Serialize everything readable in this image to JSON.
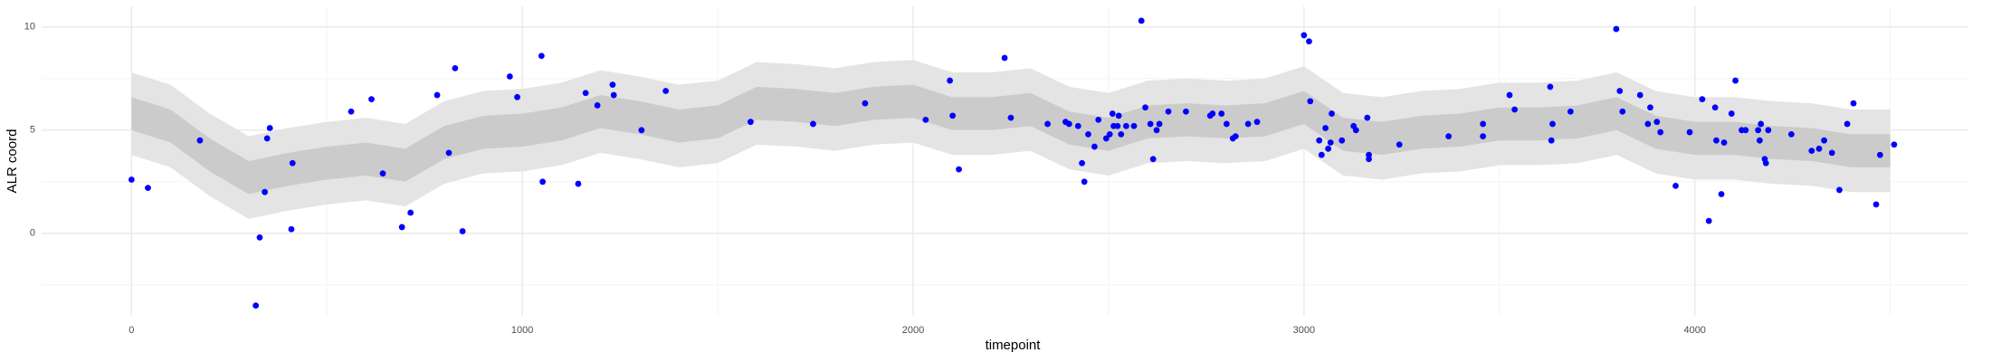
{
  "chart_data": {
    "type": "scatter",
    "x_label": "timepoint",
    "y_label": "ALR coord",
    "xlim": [
      -230,
      4700
    ],
    "ylim": [
      -4,
      11
    ],
    "xticks": [
      0,
      1000,
      2000,
      3000,
      4000
    ],
    "yticks": [
      0,
      5,
      10
    ],
    "minor_xticks": [
      500,
      1500,
      2500,
      3500,
      4500
    ],
    "minor_yticks": [
      -2.5,
      2.5,
      7.5
    ],
    "grid": true,
    "color": "#0000ff",
    "ribbon_x": [
      0,
      100,
      200,
      300,
      400,
      500,
      600,
      700,
      800,
      900,
      1000,
      1100,
      1200,
      1300,
      1400,
      1500,
      1600,
      1700,
      1800,
      1900,
      2000,
      2100,
      2200,
      2300,
      2400,
      2500,
      2600,
      2700,
      2800,
      2900,
      3000,
      3100,
      3200,
      3300,
      3400,
      3500,
      3600,
      3700,
      3800,
      3900,
      4000,
      4100,
      4200,
      4300,
      4400,
      4500
    ],
    "ribbons": [
      {
        "color": "#e4e4e4",
        "lower": [
          3.8,
          3.2,
          1.8,
          0.7,
          1.1,
          1.4,
          1.6,
          1.3,
          2.4,
          2.9,
          3.0,
          3.3,
          3.9,
          3.6,
          3.2,
          3.4,
          4.3,
          4.2,
          4.0,
          4.3,
          4.4,
          3.8,
          3.8,
          4.0,
          3.1,
          2.8,
          3.4,
          3.5,
          3.4,
          3.5,
          4.1,
          2.8,
          2.6,
          2.9,
          3.0,
          3.3,
          3.3,
          3.4,
          3.8,
          2.9,
          2.6,
          2.6,
          2.4,
          2.3,
          2.0,
          2.0
        ],
        "upper": [
          7.8,
          7.2,
          5.8,
          4.7,
          5.1,
          5.4,
          5.6,
          5.3,
          6.4,
          6.9,
          7.0,
          7.3,
          7.9,
          7.6,
          7.2,
          7.4,
          8.3,
          8.2,
          8.0,
          8.3,
          8.4,
          7.8,
          7.8,
          8.0,
          7.1,
          6.8,
          7.4,
          7.5,
          7.4,
          7.5,
          8.1,
          6.8,
          6.6,
          6.9,
          7.0,
          7.3,
          7.3,
          7.4,
          7.8,
          6.9,
          6.6,
          6.6,
          6.4,
          6.3,
          6.0,
          6.0
        ]
      },
      {
        "color": "#cbcbcb",
        "lower": [
          5.0,
          4.4,
          3.0,
          1.9,
          2.3,
          2.6,
          2.8,
          2.5,
          3.6,
          4.1,
          4.2,
          4.5,
          5.1,
          4.8,
          4.4,
          4.6,
          5.5,
          5.4,
          5.2,
          5.5,
          5.6,
          5.0,
          5.0,
          5.2,
          4.3,
          4.0,
          4.6,
          4.7,
          4.6,
          4.7,
          5.3,
          4.0,
          3.8,
          4.1,
          4.2,
          4.5,
          4.5,
          4.6,
          5.0,
          4.1,
          3.8,
          3.8,
          3.6,
          3.5,
          3.2,
          3.2
        ],
        "upper": [
          6.6,
          6.0,
          4.6,
          3.5,
          3.9,
          4.2,
          4.4,
          4.1,
          5.2,
          5.7,
          5.8,
          6.1,
          6.7,
          6.4,
          6.0,
          6.2,
          7.1,
          7.0,
          6.8,
          7.1,
          7.2,
          6.6,
          6.6,
          6.8,
          5.9,
          5.6,
          6.2,
          6.3,
          6.2,
          6.3,
          6.9,
          5.6,
          5.4,
          5.7,
          5.8,
          6.1,
          6.1,
          6.2,
          6.6,
          5.7,
          5.4,
          5.4,
          5.2,
          5.1,
          4.8,
          4.8
        ]
      }
    ],
    "x": [
      0,
      42,
      175,
      318,
      328,
      341,
      347,
      354,
      409,
      412,
      562,
      614,
      643,
      692,
      714,
      782,
      812,
      828,
      847,
      968,
      987,
      1049,
      1052,
      1143,
      1162,
      1192,
      1231,
      1234,
      1305,
      1367,
      1584,
      1744,
      1877,
      2032,
      2094,
      2101,
      2117,
      2234,
      2250,
      2344,
      2390,
      2399,
      2422,
      2432,
      2438,
      2448,
      2464,
      2474,
      2494,
      2503,
      2510,
      2513,
      2523,
      2526,
      2532,
      2545,
      2565,
      2584,
      2594,
      2607,
      2614,
      2623,
      2630,
      2653,
      2698,
      2760,
      2766,
      2789,
      2802,
      2818,
      2825,
      2857,
      2880,
      3000,
      3013,
      3016,
      3039,
      3045,
      3055,
      3062,
      3068,
      3071,
      3097,
      3127,
      3133,
      3162,
      3166,
      3166,
      3244,
      3370,
      3458,
      3458,
      3526,
      3539,
      3630,
      3633,
      3636,
      3682,
      3799,
      3808,
      3815,
      3860,
      3880,
      3886,
      3903,
      3912,
      3951,
      3987,
      4019,
      4036,
      4052,
      4055,
      4068,
      4075,
      4094,
      4104,
      4120,
      4130,
      4162,
      4166,
      4169,
      4179,
      4182,
      4188,
      4247,
      4299,
      4318,
      4331,
      4351,
      4370,
      4390,
      4406,
      4464,
      4474,
      4510
    ],
    "values": [
      2.6,
      2.2,
      4.5,
      -3.5,
      -0.2,
      2.0,
      4.6,
      5.1,
      0.2,
      3.4,
      5.9,
      6.5,
      2.9,
      0.3,
      1.0,
      6.7,
      3.9,
      8.0,
      0.1,
      7.6,
      6.6,
      8.6,
      2.5,
      2.4,
      6.8,
      6.2,
      7.2,
      6.7,
      5.0,
      6.9,
      5.4,
      5.3,
      6.3,
      5.5,
      7.4,
      5.7,
      3.1,
      8.5,
      5.6,
      5.3,
      5.4,
      5.3,
      5.2,
      3.4,
      2.5,
      4.8,
      4.2,
      5.5,
      4.6,
      4.8,
      5.8,
      5.2,
      5.2,
      5.7,
      4.8,
      5.2,
      5.2,
      10.3,
      6.1,
      5.3,
      3.6,
      5.0,
      5.3,
      5.9,
      5.9,
      5.7,
      5.8,
      5.8,
      5.3,
      4.6,
      4.7,
      5.3,
      5.4,
      9.6,
      9.3,
      6.4,
      4.5,
      3.8,
      5.1,
      4.1,
      4.4,
      5.8,
      4.5,
      5.2,
      5.0,
      5.6,
      3.8,
      3.6,
      4.3,
      4.7,
      5.3,
      4.7,
      6.7,
      6.0,
      7.1,
      4.5,
      5.3,
      5.9,
      9.9,
      6.9,
      5.9,
      6.7,
      5.3,
      6.1,
      5.4,
      4.9,
      2.3,
      4.9,
      6.5,
      0.6,
      6.1,
      4.5,
      1.9,
      4.4,
      5.8,
      7.4,
      5.0,
      5.0,
      5.0,
      4.5,
      5.3,
      3.6,
      3.4,
      5.0,
      4.8,
      4.0,
      4.1,
      4.5,
      3.9,
      2.1,
      5.3,
      6.3,
      1.4,
      3.8,
      4.3
    ]
  }
}
